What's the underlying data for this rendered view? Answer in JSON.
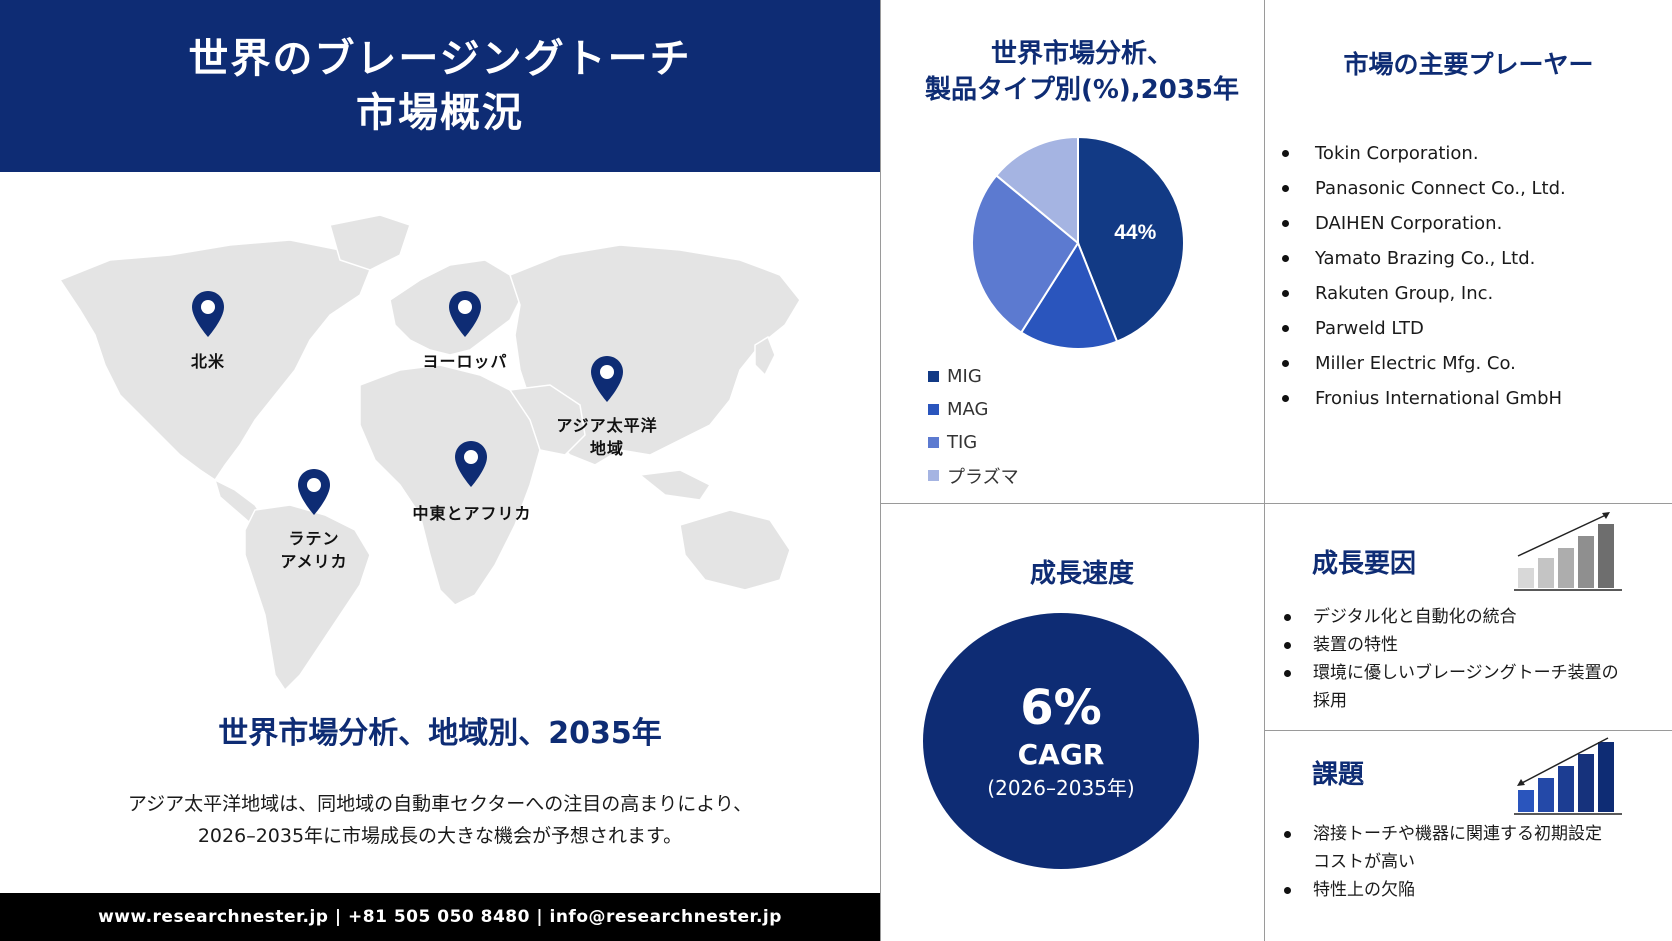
{
  "header": {
    "title_line1": "世界のブレージングトーチ",
    "title_line2": "市場概況"
  },
  "map": {
    "pins": [
      {
        "label": "北米"
      },
      {
        "label": "ヨーロッパ"
      },
      {
        "label_line1": "アジア太平洋",
        "label_line2": "地域"
      },
      {
        "label": "中東とアフリカ"
      },
      {
        "label_line1": "ラテン",
        "label_line2": "アメリカ"
      }
    ],
    "pin_color": "#0e2c74"
  },
  "region_section": {
    "heading": "世界市場分析、地域別、2035年",
    "description_line1": "アジア太平洋地域は、同地域の自動車セクターへの注目の高まりにより、",
    "description_line2": "2026–2035年に市場成長の大きな機会が予想されます。"
  },
  "footer": {
    "contact": "www.researchnester.jp | +81 505 050 8480 | info@researchnester.jp"
  },
  "product_type": {
    "title_line1": "世界市場分析、",
    "title_line2": "製品タイプ別(%),2035年"
  },
  "chart_data": {
    "type": "pie",
    "categories": [
      "MIG",
      "MAG",
      "TIG",
      "プラズマ"
    ],
    "values": [
      44,
      15,
      27,
      14
    ],
    "data_labels": [
      "44%",
      "",
      "",
      ""
    ],
    "colors": [
      "#123a85",
      "#2a55bd",
      "#5c7ad0",
      "#a5b4e2"
    ],
    "legend_placement": "bottom-left"
  },
  "players": {
    "title": "市場の主要プレーヤー",
    "items": [
      "Tokin Corporation.",
      "Panasonic Connect Co., Ltd.",
      "DAIHEN Corporation.",
      "Yamato Brazing Co., Ltd.",
      "Rakuten Group, Inc.",
      "Parweld LTD",
      "Miller Electric Mfg. Co.",
      "Fronius International GmbH"
    ]
  },
  "growth": {
    "title": "成長速度",
    "cagr_value": "6%",
    "cagr_label": "CAGR",
    "cagr_period": "(2026–2035年)"
  },
  "drivers": {
    "title": "成長要因",
    "items": [
      "デジタル化と自動化の統合",
      "装置の特性",
      "環境に優しいブレージングトーチ装置の",
      "採用"
    ],
    "icon": "bar-chart-up-icon"
  },
  "challenges": {
    "title": "課題",
    "items": [
      "溶接トーチや機器に関連する初期設定",
      "コストが高い",
      "特性上の欠陥"
    ],
    "icon": "bar-chart-down-icon"
  },
  "colors": {
    "navy": "#0e2c74",
    "map_gray": "#e3e3e3"
  }
}
